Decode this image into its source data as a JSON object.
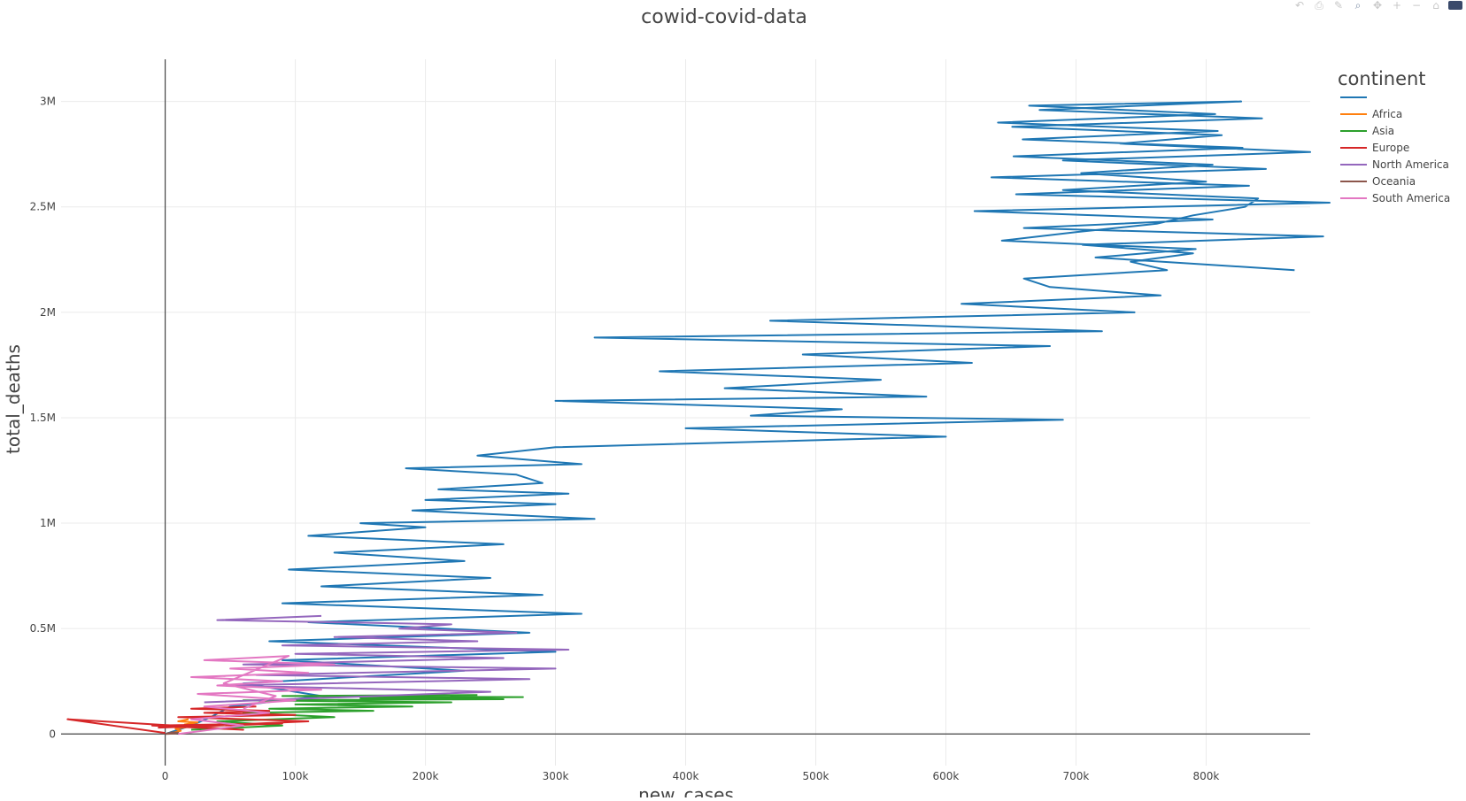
{
  "chart_data": {
    "type": "line",
    "title": "cowid-covid-data",
    "xlabel": "new_cases",
    "ylabel": "total_deaths",
    "xlim": [
      -80000,
      880000
    ],
    "ylim": [
      -150000,
      3200000
    ],
    "x_ticks": [
      0,
      100000,
      200000,
      300000,
      400000,
      500000,
      600000,
      700000,
      800000
    ],
    "x_tick_labels": [
      "0",
      "100k",
      "200k",
      "300k",
      "400k",
      "500k",
      "600k",
      "700k",
      "800k"
    ],
    "y_ticks": [
      0,
      500000,
      1000000,
      1500000,
      2000000,
      2500000,
      3000000
    ],
    "y_tick_labels": [
      "0",
      "0.5M",
      "1M",
      "1.5M",
      "2M",
      "2.5M",
      "3M"
    ],
    "grid": true,
    "legend": {
      "title": "continent",
      "position": "right"
    },
    "series": [
      {
        "name": "",
        "color": "#1f77b4",
        "x": [
          0,
          20000,
          35000,
          50000,
          120000,
          60000,
          230000,
          90000,
          300000,
          80000,
          280000,
          110000,
          320000,
          90000,
          290000,
          120000,
          250000,
          95000,
          230000,
          130000,
          260000,
          110000,
          200000,
          150000,
          330000,
          190000,
          300000,
          200000,
          310000,
          210000,
          290000,
          270000,
          185000,
          320000,
          240000,
          300000,
          600000,
          400000,
          690000,
          450000,
          520000,
          300000,
          585000,
          430000,
          550000,
          380000,
          620000,
          490000,
          680000,
          330000,
          720000,
          465000,
          745000,
          612000,
          765000,
          680000,
          660000,
          770000,
          742000,
          790000,
          705000,
          890000,
          660000,
          805000,
          622000,
          895000,
          654000,
          833000,
          635000,
          846000,
          690000,
          880000,
          734000,
          812000,
          651000,
          843000,
          672000,
          827000,
          664000,
          807000,
          640000,
          809000,
          659000,
          828000,
          652000,
          805000,
          704000,
          800000,
          690000,
          840000,
          830000,
          790000,
          762000,
          700000,
          643000,
          792000,
          715000,
          868000
        ],
        "y": [
          0,
          40000,
          80000,
          130000,
          180000,
          240000,
          300000,
          350000,
          390000,
          440000,
          480000,
          530000,
          570000,
          620000,
          660000,
          700000,
          740000,
          780000,
          820000,
          860000,
          900000,
          940000,
          980000,
          1000000,
          1020000,
          1060000,
          1090000,
          1110000,
          1140000,
          1160000,
          1190000,
          1230000,
          1260000,
          1280000,
          1320000,
          1360000,
          1410000,
          1450000,
          1490000,
          1510000,
          1540000,
          1580000,
          1600000,
          1640000,
          1680000,
          1720000,
          1760000,
          1800000,
          1840000,
          1880000,
          1910000,
          1960000,
          2000000,
          2040000,
          2080000,
          2120000,
          2160000,
          2200000,
          2240000,
          2280000,
          2320000,
          2360000,
          2400000,
          2440000,
          2480000,
          2520000,
          2560000,
          2600000,
          2640000,
          2680000,
          2720000,
          2760000,
          2800000,
          2840000,
          2880000,
          2920000,
          2960000,
          3000000,
          2980000,
          2940000,
          2900000,
          2860000,
          2820000,
          2780000,
          2740000,
          2700000,
          2660000,
          2620000,
          2580000,
          2540000,
          2500000,
          2460000,
          2420000,
          2380000,
          2340000,
          2300000,
          2260000,
          2200000
        ]
      },
      {
        "name": "Africa",
        "color": "#ff7f0e",
        "x": [
          5000,
          12000,
          8000,
          20000,
          15000,
          25000,
          10000,
          18000
        ],
        "y": [
          5000,
          15000,
          25000,
          35000,
          45000,
          55000,
          60000,
          70000
        ]
      },
      {
        "name": "Asia",
        "color": "#2ca02c",
        "x": [
          20000,
          90000,
          40000,
          130000,
          60000,
          160000,
          80000,
          190000,
          100000,
          220000,
          60000,
          260000,
          150000,
          275000,
          90000,
          240000
        ],
        "y": [
          20000,
          40000,
          60000,
          80000,
          100000,
          110000,
          120000,
          130000,
          140000,
          150000,
          160000,
          165000,
          170000,
          175000,
          180000,
          185000
        ]
      },
      {
        "name": "Europe",
        "color": "#d62728",
        "x": [
          0,
          -75000,
          60000,
          -10000,
          90000,
          -5000,
          110000,
          10000,
          100000,
          30000,
          80000,
          20000,
          70000
        ],
        "y": [
          5000,
          70000,
          20000,
          40000,
          50000,
          30000,
          60000,
          80000,
          90000,
          100000,
          110000,
          120000,
          130000
        ]
      },
      {
        "name": "North America",
        "color": "#9467bd",
        "x": [
          30000,
          250000,
          50000,
          280000,
          70000,
          300000,
          60000,
          260000,
          100000,
          310000,
          90000,
          240000,
          130000,
          270000,
          180000,
          220000,
          40000,
          120000
        ],
        "y": [
          150000,
          200000,
          230000,
          260000,
          280000,
          310000,
          330000,
          360000,
          380000,
          400000,
          420000,
          440000,
          460000,
          480000,
          500000,
          520000,
          540000,
          560000
        ]
      },
      {
        "name": "Oceania",
        "color": "#8c564b",
        "x": [
          0,
          8000,
          2000,
          10000,
          4000
        ],
        "y": [
          0,
          2000,
          4000,
          6000,
          8000
        ]
      },
      {
        "name": "South America",
        "color": "#e377c2",
        "x": [
          10000,
          60000,
          20000,
          80000,
          30000,
          100000,
          25000,
          120000,
          40000,
          90000,
          20000,
          110000,
          50000,
          130000,
          30000,
          95000,
          45000,
          85000,
          60000
        ],
        "y": [
          0,
          40000,
          70000,
          100000,
          130000,
          160000,
          190000,
          210000,
          230000,
          250000,
          270000,
          290000,
          310000,
          330000,
          350000,
          370000,
          240000,
          180000,
          120000
        ]
      }
    ]
  },
  "modebar": {
    "icons": [
      "undo-icon",
      "download-plot-icon",
      "edit-chart-icon",
      "zoom-icon",
      "pan-icon",
      "zoom-in-icon",
      "zoom-out-icon",
      "reset-axes-icon",
      "plotly-logo-icon"
    ]
  }
}
